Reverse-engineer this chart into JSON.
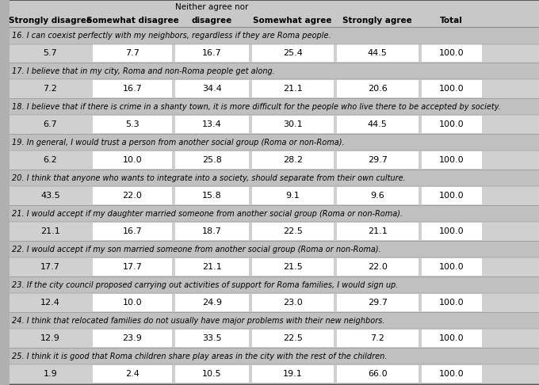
{
  "col_header_extra": "Neither agree nor",
  "headers": [
    "Strongly disagree",
    "Somewhat disagree",
    "disagree",
    "Somewhat agree",
    "Strongly agree",
    "Total"
  ],
  "rows": [
    {
      "question": "16. I can coexist perfectly with my neighbors, regardless if they are Roma people.",
      "values": [
        5.7,
        7.7,
        16.7,
        25.4,
        44.5,
        100.0
      ]
    },
    {
      "question": "17. I believe that in my city, Roma and non-Roma people get along.",
      "values": [
        7.2,
        16.7,
        34.4,
        21.1,
        20.6,
        100.0
      ]
    },
    {
      "question": "18. I believe that if there is crime in a shanty town, it is more difficult for the people who live there to be accepted by society.",
      "values": [
        6.7,
        5.3,
        13.4,
        30.1,
        44.5,
        100.0
      ]
    },
    {
      "question": "19. In general, I would trust a person from another social group (Roma or non-Roma).",
      "values": [
        6.2,
        10.0,
        25.8,
        28.2,
        29.7,
        100.0
      ]
    },
    {
      "question": "20. I think that anyone who wants to integrate into a society, should separate from their own culture.",
      "values": [
        43.5,
        22.0,
        15.8,
        9.1,
        9.6,
        100.0
      ]
    },
    {
      "question": "21. I would accept if my daughter married someone from another social group (Roma or non-Roma).",
      "values": [
        21.1,
        16.7,
        18.7,
        22.5,
        21.1,
        100.0
      ]
    },
    {
      "question": "22. I would accept if my son married someone from another social group (Roma or non-Roma).",
      "values": [
        17.7,
        17.7,
        21.1,
        21.5,
        22.0,
        100.0
      ]
    },
    {
      "question": "23. If the city council proposed carrying out activities of support for Roma families, I would sign up.",
      "values": [
        12.4,
        10.0,
        24.9,
        23.0,
        29.7,
        100.0
      ]
    },
    {
      "question": "24. I think that relocated families do not usually have major problems with their new neighbors.",
      "values": [
        12.9,
        23.9,
        33.5,
        22.5,
        7.2,
        100.0
      ]
    },
    {
      "question": "25. I think it is good that Roma children share play areas in the city with the rest of the children.",
      "values": [
        1.9,
        2.4,
        10.5,
        19.1,
        66.0,
        100.0
      ]
    }
  ],
  "bg_color_header": "#c8c8c8",
  "bg_color_question": "#c0c0c0",
  "bg_color_data_white": "#ffffff",
  "bg_color_data_gray": "#d0d0d0",
  "fig_bg": "#b0b0b0",
  "text_color": "#000000",
  "header_fontsize": 7.5,
  "question_fontsize": 7.0,
  "data_fontsize": 8.0,
  "col_starts": [
    0.0,
    0.155,
    0.31,
    0.455,
    0.615,
    0.775,
    0.895
  ],
  "col_ends": [
    0.155,
    0.31,
    0.455,
    0.615,
    0.775,
    0.895,
    1.0
  ]
}
